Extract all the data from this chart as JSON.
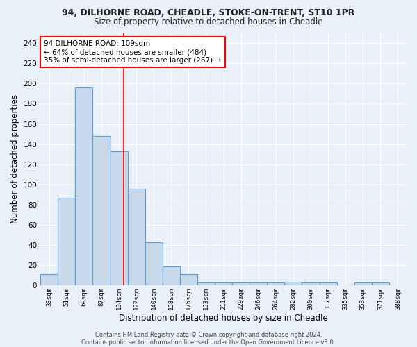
{
  "title1": "94, DILHORNE ROAD, CHEADLE, STOKE-ON-TRENT, ST10 1PR",
  "title2": "Size of property relative to detached houses in Cheadle",
  "xlabel": "Distribution of detached houses by size in Cheadle",
  "ylabel": "Number of detached properties",
  "bar_labels": [
    "33sqm",
    "51sqm",
    "69sqm",
    "87sqm",
    "104sqm",
    "122sqm",
    "140sqm",
    "158sqm",
    "175sqm",
    "193sqm",
    "211sqm",
    "229sqm",
    "246sqm",
    "264sqm",
    "282sqm",
    "300sqm",
    "317sqm",
    "335sqm",
    "353sqm",
    "371sqm",
    "388sqm"
  ],
  "bar_values": [
    11,
    87,
    196,
    148,
    133,
    96,
    43,
    19,
    11,
    3,
    3,
    3,
    3,
    3,
    4,
    3,
    3,
    0,
    3,
    3,
    0
  ],
  "bar_color": "#c8d9eb",
  "bar_edge_color": "#5b9bd5",
  "background_color": "#eaf0f8",
  "grid_color": "#ffffff",
  "vline_x_index": 4.5,
  "vline_color": "red",
  "annotation_text": "94 DILHORNE ROAD: 109sqm\n← 64% of detached houses are smaller (484)\n35% of semi-detached houses are larger (267) →",
  "annotation_box_color": "white",
  "annotation_box_edge": "red",
  "ylim": [
    0,
    250
  ],
  "yticks": [
    0,
    20,
    40,
    60,
    80,
    100,
    120,
    140,
    160,
    180,
    200,
    220,
    240
  ],
  "footer": "Contains HM Land Registry data © Crown copyright and database right 2024.\nContains public sector information licensed under the Open Government Licence v3.0.",
  "bin_edges": [
    33,
    51,
    69,
    87,
    104,
    122,
    140,
    158,
    175,
    193,
    211,
    229,
    246,
    264,
    282,
    300,
    317,
    335,
    353,
    371,
    388
  ]
}
